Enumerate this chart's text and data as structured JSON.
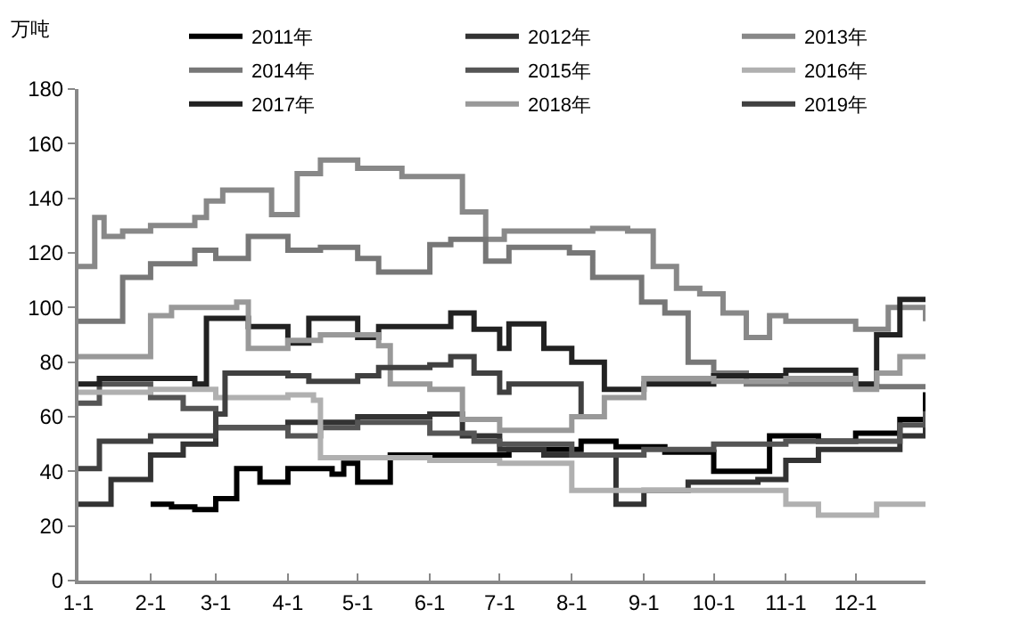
{
  "chart_data": {
    "type": "step",
    "ylabel": "万吨",
    "legend": "top",
    "line_style": "solid",
    "marker": "none",
    "grid": false,
    "xlim": [
      "--01-01",
      "--12-31"
    ],
    "xticks": [
      {
        "value": "--01-01",
        "label": "1-1"
      },
      {
        "value": "--02-01",
        "label": "2-1"
      },
      {
        "value": "--03-01",
        "label": "3-1"
      },
      {
        "value": "--04-01",
        "label": "4-1"
      },
      {
        "value": "--05-01",
        "label": "5-1"
      },
      {
        "value": "--06-01",
        "label": "6-1"
      },
      {
        "value": "--07-01",
        "label": "7-1"
      },
      {
        "value": "--08-01",
        "label": "8-1"
      },
      {
        "value": "--09-01",
        "label": "9-1"
      },
      {
        "value": "--10-01",
        "label": "10-1"
      },
      {
        "value": "--11-01",
        "label": "11-1"
      },
      {
        "value": "--12-01",
        "label": "12-1"
      }
    ],
    "ylim": [
      0,
      180
    ],
    "yticks": [
      0,
      20,
      40,
      60,
      80,
      100,
      120,
      140,
      160,
      180
    ],
    "series": [
      {
        "name": "2011年",
        "color": "#000000",
        "x": [
          "--02-01",
          "--02-10",
          "--02-20",
          "--03-01",
          "--03-10",
          "--03-20",
          "--04-01",
          "--04-20",
          "--04-25",
          "--05-01",
          "--05-15",
          "--07-05",
          "--08-05",
          "--08-20",
          "--09-10",
          "--10-01",
          "--10-25",
          "--11-15",
          "--12-01",
          "--12-20",
          "--12-31"
        ],
        "values": [
          28,
          27,
          26,
          30,
          41,
          36,
          41,
          39,
          43,
          36,
          46,
          48,
          51,
          49,
          47,
          40,
          53,
          51,
          54,
          59,
          69
        ]
      },
      {
        "name": "2012年",
        "color": "#333333",
        "x": [
          "--01-01",
          "--01-15",
          "--02-01",
          "--02-15",
          "--03-01",
          "--04-01",
          "--05-01",
          "--06-01",
          "--06-15",
          "--07-01",
          "--07-20",
          "--08-20",
          "--09-01",
          "--09-20",
          "--10-20",
          "--11-01",
          "--11-15",
          "--12-20",
          "--12-31"
        ],
        "values": [
          28,
          37,
          46,
          50,
          56,
          58,
          60,
          61,
          53,
          48,
          46,
          28,
          33,
          36,
          37,
          44,
          48,
          53,
          60
        ]
      },
      {
        "name": "2013年",
        "color": "#888888",
        "x": [
          "--01-01",
          "--01-08",
          "--01-12",
          "--01-20",
          "--02-01",
          "--02-20",
          "--02-25",
          "--03-04",
          "--03-25",
          "--04-05",
          "--04-15",
          "--05-01",
          "--05-20",
          "--06-15",
          "--06-25",
          "--07-03",
          "--08-10",
          "--08-25",
          "--09-05",
          "--09-15",
          "--09-25",
          "--10-05",
          "--10-15",
          "--10-25",
          "--11-01",
          "--12-01",
          "--12-15",
          "--12-31"
        ],
        "values": [
          115,
          133,
          126,
          128,
          130,
          133,
          139,
          143,
          134,
          149,
          154,
          151,
          148,
          135,
          125,
          128,
          129,
          128,
          115,
          107,
          105,
          98,
          89,
          97,
          95,
          92,
          100,
          95
        ]
      },
      {
        "name": "2014年",
        "color": "#777777",
        "x": [
          "--01-01",
          "--01-20",
          "--02-01",
          "--02-20",
          "--03-01",
          "--03-15",
          "--04-01",
          "--04-15",
          "--05-01",
          "--05-10",
          "--06-01",
          "--06-10",
          "--06-25",
          "--07-05",
          "--07-31",
          "--08-10",
          "--08-31",
          "--09-10",
          "--09-20",
          "--10-01",
          "--10-15",
          "--12-01",
          "--12-31"
        ],
        "values": [
          95,
          111,
          116,
          121,
          118,
          126,
          121,
          122,
          118,
          113,
          123,
          125,
          117,
          122,
          120,
          111,
          102,
          98,
          80,
          76,
          72,
          71,
          72
        ]
      },
      {
        "name": "2015年",
        "color": "#555555",
        "x": [
          "--01-01",
          "--01-10",
          "--02-01",
          "--02-15",
          "--03-01",
          "--04-01",
          "--04-15",
          "--05-01",
          "--06-01",
          "--06-20",
          "--07-01",
          "--08-01",
          "--09-01",
          "--10-01",
          "--11-01",
          "--12-01",
          "--12-20",
          "--12-31"
        ],
        "values": [
          65,
          72,
          67,
          63,
          56,
          53,
          56,
          58,
          54,
          51,
          50,
          46,
          48,
          50,
          51,
          51,
          57,
          62
        ]
      },
      {
        "name": "2016年",
        "color": "#b0b0b0",
        "x": [
          "--01-01",
          "--02-01",
          "--03-01",
          "--04-01",
          "--04-12",
          "--04-15",
          "--06-01",
          "--07-01",
          "--08-01",
          "--10-25",
          "--11-01",
          "--11-15",
          "--12-10",
          "--12-31"
        ],
        "values": [
          69,
          70,
          67,
          68,
          66,
          45,
          44,
          43,
          33,
          33,
          28,
          24,
          28,
          28
        ]
      },
      {
        "name": "2017年",
        "color": "#222222",
        "x": [
          "--01-01",
          "--01-10",
          "--02-20",
          "--02-25",
          "--03-15",
          "--04-01",
          "--04-10",
          "--05-01",
          "--05-10",
          "--06-10",
          "--06-20",
          "--07-01",
          "--07-05",
          "--07-20",
          "--08-01",
          "--08-15",
          "--09-01",
          "--10-01",
          "--11-01",
          "--12-01",
          "--12-10",
          "--12-20",
          "--12-31"
        ],
        "values": [
          72,
          74,
          72,
          96,
          93,
          87,
          96,
          89,
          93,
          98,
          92,
          85,
          94,
          85,
          80,
          70,
          72,
          75,
          77,
          72,
          90,
          103,
          103
        ]
      },
      {
        "name": "2018年",
        "color": "#999999",
        "x": [
          "--01-01",
          "--01-25",
          "--02-01",
          "--02-10",
          "--03-10",
          "--03-15",
          "--04-01",
          "--04-15",
          "--05-10",
          "--05-15",
          "--06-01",
          "--06-15",
          "--07-01",
          "--08-01",
          "--08-15",
          "--09-01",
          "--10-01",
          "--11-01",
          "--12-01",
          "--12-10",
          "--12-20",
          "--12-31"
        ],
        "values": [
          82,
          82,
          97,
          100,
          102,
          85,
          88,
          90,
          86,
          72,
          70,
          59,
          55,
          60,
          67,
          74,
          73,
          74,
          70,
          76,
          82,
          82
        ]
      },
      {
        "name": "2019年",
        "color": "#404040",
        "x": [
          "--01-01",
          "--01-10",
          "--02-01",
          "--03-01",
          "--03-05",
          "--04-01",
          "--04-10",
          "--05-01",
          "--05-10",
          "--06-01",
          "--06-10",
          "--06-20",
          "--07-01",
          "--07-05",
          "--08-05"
        ],
        "values": [
          41,
          51,
          53,
          61,
          76,
          75,
          73,
          75,
          78,
          79,
          82,
          76,
          69,
          72,
          61
        ]
      }
    ]
  }
}
